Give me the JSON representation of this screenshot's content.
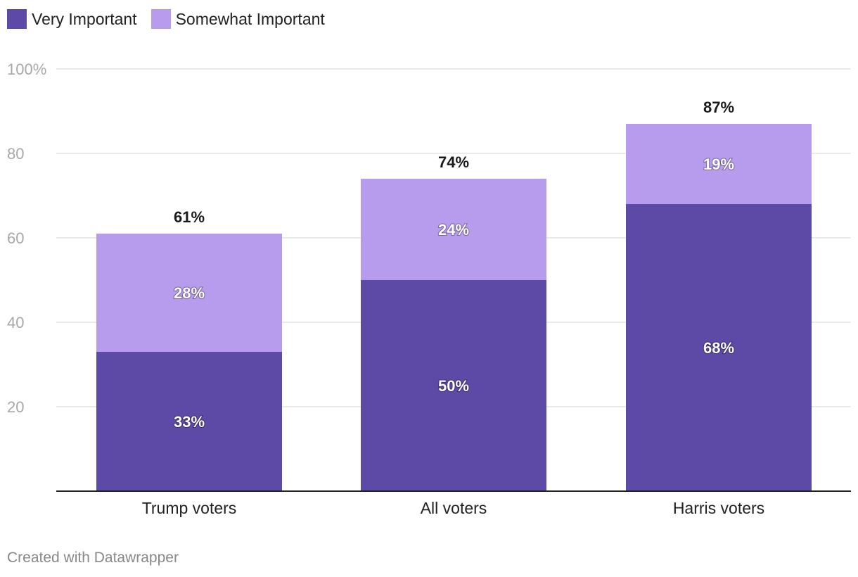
{
  "legend": [
    {
      "label": "Very Important",
      "color": "#5c4aa6"
    },
    {
      "label": "Somewhat Important",
      "color": "#b79ced"
    }
  ],
  "chart_data": {
    "type": "bar",
    "stacked": true,
    "categories": [
      "Trump voters",
      "All voters",
      "Harris voters"
    ],
    "series": [
      {
        "name": "Very Important",
        "values": [
          33,
          50,
          68
        ],
        "labels": [
          "33%",
          "50%",
          "68%"
        ],
        "color": "#5c4aa6"
      },
      {
        "name": "Somewhat Important",
        "values": [
          28,
          24,
          19
        ],
        "labels": [
          "28%",
          "24%",
          "19%"
        ],
        "color": "#b79ced"
      }
    ],
    "totals": [
      61,
      74,
      87
    ],
    "total_labels": [
      "61%",
      "74%",
      "87%"
    ],
    "yticks": [
      20,
      40,
      60,
      80,
      100
    ],
    "ytick_labels": [
      "20",
      "40",
      "60",
      "80",
      "100%"
    ],
    "ylim": [
      0,
      100
    ],
    "grid": true
  },
  "footer": "Created with Datawrapper"
}
